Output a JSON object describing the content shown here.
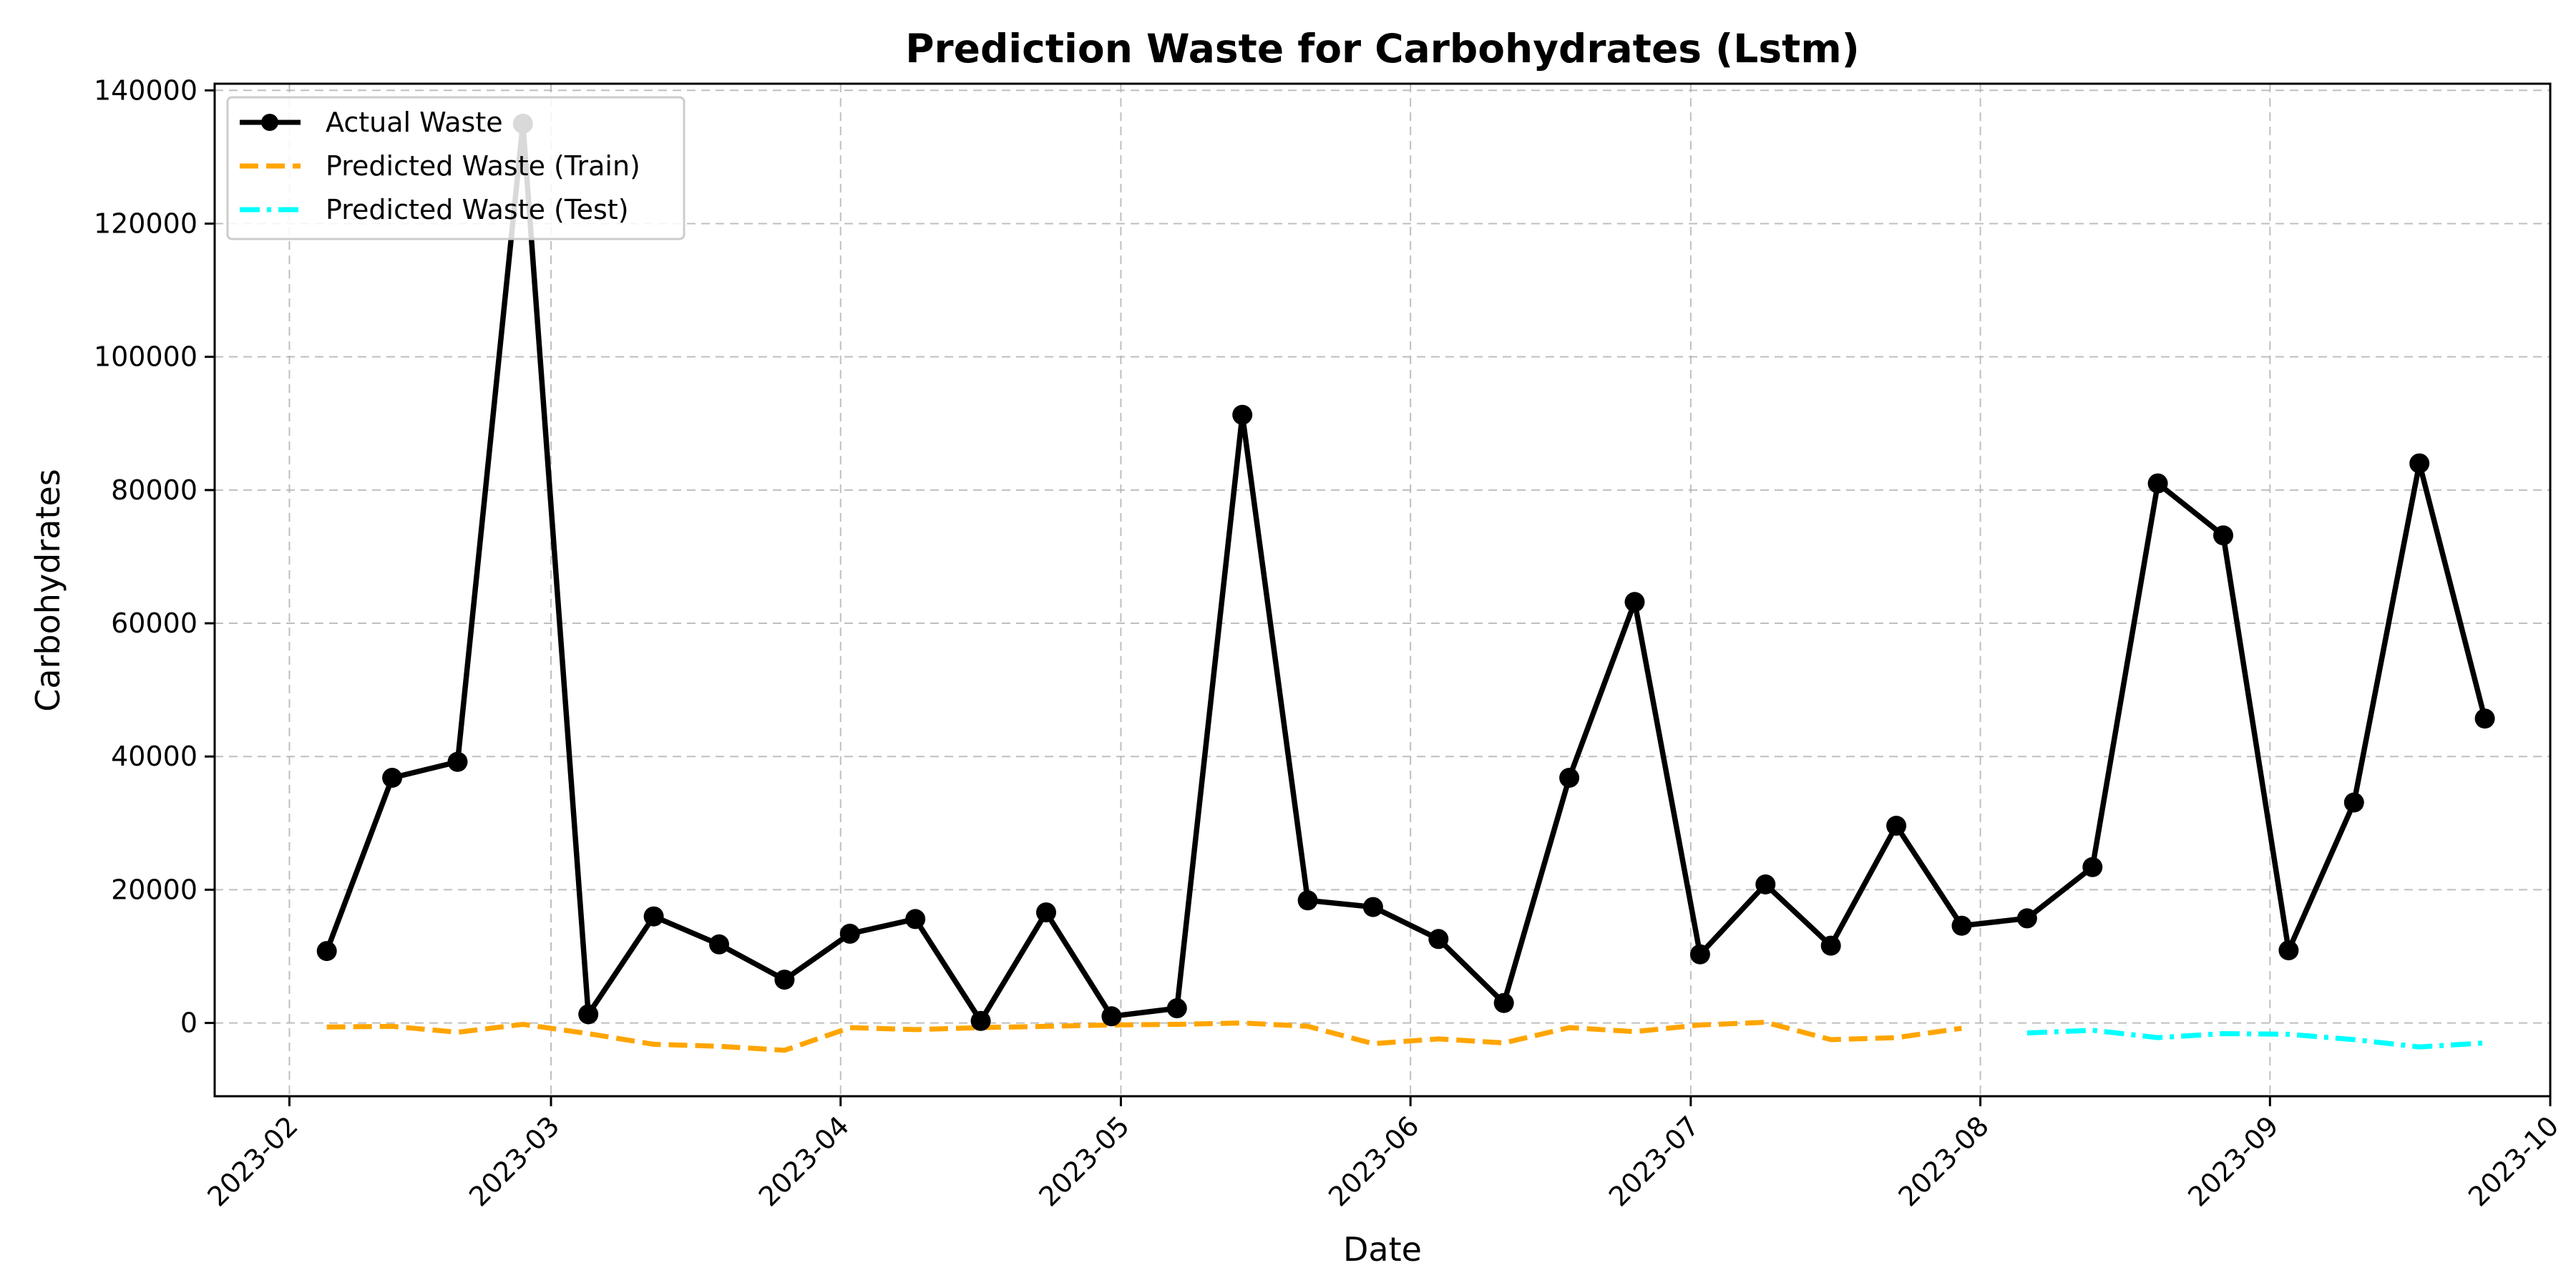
{
  "chart_data": {
    "type": "line",
    "title": "Prediction Waste for Carbohydrates (Lstm)",
    "xlabel": "Date",
    "ylabel": "Carbohydrates",
    "x_tick_labels": [
      "2023-02",
      "2023-03",
      "2023-04",
      "2023-05",
      "2023-06",
      "2023-07",
      "2023-08",
      "2023-09",
      "2023-10"
    ],
    "x_ticks": [
      "2023-02-01",
      "2023-03-01",
      "2023-04-01",
      "2023-05-01",
      "2023-06-01",
      "2023-07-01",
      "2023-08-01",
      "2023-09-01",
      "2023-10-01"
    ],
    "y_ticks": [
      0,
      20000,
      40000,
      60000,
      80000,
      100000,
      120000,
      140000
    ],
    "y_tick_labels": [
      "0",
      "20000",
      "40000",
      "60000",
      "80000",
      "100000",
      "120000",
      "140000"
    ],
    "xlim": [
      "2023-01-24",
      "2023-10-01"
    ],
    "ylim": [
      -11000,
      141000
    ],
    "grid": true,
    "legend_position": "top-left",
    "series": [
      {
        "name": "Actual Waste",
        "color": "#000000",
        "style": "solid-markers",
        "x": [
          "2023-02-05",
          "2023-02-12",
          "2023-02-19",
          "2023-02-26",
          "2023-03-05",
          "2023-03-12",
          "2023-03-19",
          "2023-03-26",
          "2023-04-02",
          "2023-04-09",
          "2023-04-16",
          "2023-04-23",
          "2023-04-30",
          "2023-05-07",
          "2023-05-14",
          "2023-05-21",
          "2023-05-28",
          "2023-06-04",
          "2023-06-11",
          "2023-06-18",
          "2023-06-25",
          "2023-07-02",
          "2023-07-09",
          "2023-07-16",
          "2023-07-23",
          "2023-07-30",
          "2023-08-06",
          "2023-08-13",
          "2023-08-20",
          "2023-08-27",
          "2023-09-03",
          "2023-09-10",
          "2023-09-17",
          "2023-09-24"
        ],
        "values": [
          10800,
          36800,
          39200,
          135000,
          1300,
          16000,
          11800,
          6500,
          13400,
          15600,
          300,
          16600,
          1000,
          2200,
          91300,
          18400,
          17400,
          12600,
          3000,
          36800,
          63200,
          10300,
          20800,
          11600,
          29600,
          14600,
          15700,
          23400,
          81000,
          73200,
          10900,
          33100,
          84000,
          45700
        ]
      },
      {
        "name": "Predicted Waste (Train)",
        "color": "#ffa500",
        "style": "dashed",
        "x": [
          "2023-02-05",
          "2023-02-12",
          "2023-02-19",
          "2023-02-26",
          "2023-03-05",
          "2023-03-12",
          "2023-03-19",
          "2023-03-26",
          "2023-04-02",
          "2023-04-09",
          "2023-04-16",
          "2023-04-23",
          "2023-04-30",
          "2023-05-07",
          "2023-05-14",
          "2023-05-21",
          "2023-05-28",
          "2023-06-04",
          "2023-06-11",
          "2023-06-18",
          "2023-06-25",
          "2023-07-02",
          "2023-07-09",
          "2023-07-16",
          "2023-07-23",
          "2023-07-30"
        ],
        "values": [
          -600,
          -500,
          -1400,
          -200,
          -1600,
          -3200,
          -3500,
          -4100,
          -700,
          -1000,
          -700,
          -500,
          -300,
          -200,
          0,
          -500,
          -3100,
          -2400,
          -3000,
          -700,
          -1300,
          -300,
          100,
          -2500,
          -2200,
          -800
        ]
      },
      {
        "name": "Predicted Waste (Test)",
        "color": "#00ffff",
        "style": "dashdot",
        "x": [
          "2023-08-06",
          "2023-08-13",
          "2023-08-20",
          "2023-08-27",
          "2023-09-03",
          "2023-09-10",
          "2023-09-17",
          "2023-09-24"
        ],
        "values": [
          -1500,
          -1100,
          -2200,
          -1600,
          -1700,
          -2500,
          -3600,
          -3000
        ]
      }
    ]
  }
}
